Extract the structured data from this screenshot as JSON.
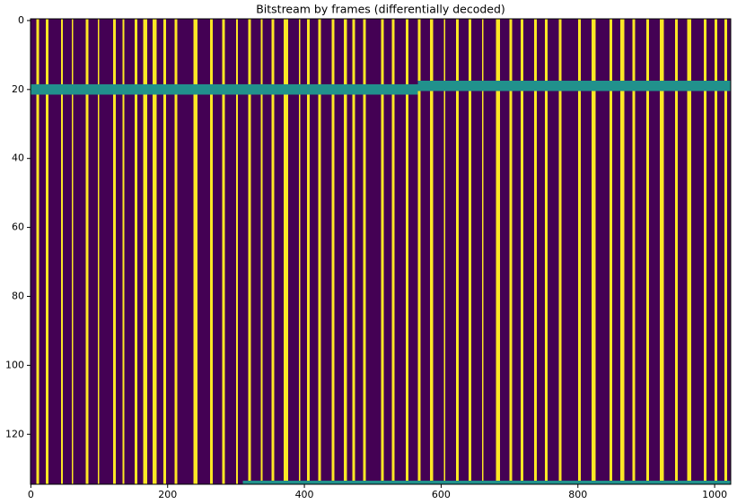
{
  "chart_data": {
    "type": "heatmap",
    "title": "Bitstream by frames (differentially decoded)",
    "xlim": [
      -0.5,
      1023.5
    ],
    "ylim": [
      134.5,
      -0.5
    ],
    "xticks": [
      0,
      200,
      400,
      600,
      800,
      1000
    ],
    "yticks": [
      0,
      20,
      40,
      60,
      80,
      100,
      120
    ],
    "colormap": [
      {
        "value": 0,
        "color": "#440154"
      },
      {
        "value": 0.5,
        "color": "#21918c"
      },
      {
        "value": 1,
        "color": "#fde725"
      }
    ],
    "background": 0,
    "stripes": {
      "value": 1,
      "x": [
        [
          8,
          12
        ],
        [
          22,
          26
        ],
        [
          44,
          47
        ],
        [
          60,
          62
        ],
        [
          80,
          84
        ],
        [
          98,
          100
        ],
        [
          120,
          124
        ],
        [
          134,
          137
        ],
        [
          152,
          156
        ],
        [
          164,
          170
        ],
        [
          178,
          184
        ],
        [
          194,
          198
        ],
        [
          210,
          214
        ],
        [
          238,
          244
        ],
        [
          262,
          266
        ],
        [
          280,
          284
        ],
        [
          300,
          303
        ],
        [
          318,
          322
        ],
        [
          336,
          339
        ],
        [
          352,
          356
        ],
        [
          370,
          376
        ],
        [
          392,
          394
        ],
        [
          404,
          408
        ],
        [
          420,
          424
        ],
        [
          440,
          444
        ],
        [
          458,
          462
        ],
        [
          470,
          474
        ],
        [
          486,
          490
        ],
        [
          512,
          516
        ],
        [
          528,
          532
        ],
        [
          548,
          552
        ],
        [
          566,
          570
        ],
        [
          584,
          588
        ],
        [
          604,
          606
        ],
        [
          622,
          626
        ],
        [
          640,
          644
        ],
        [
          660,
          662
        ],
        [
          680,
          686
        ],
        [
          700,
          704
        ],
        [
          716,
          720
        ],
        [
          736,
          740
        ],
        [
          752,
          756
        ],
        [
          772,
          776
        ],
        [
          800,
          804
        ],
        [
          820,
          826
        ],
        [
          846,
          850
        ],
        [
          862,
          868
        ],
        [
          880,
          884
        ],
        [
          900,
          904
        ],
        [
          920,
          926
        ],
        [
          942,
          946
        ],
        [
          960,
          966
        ],
        [
          984,
          988
        ],
        [
          1000,
          1004
        ],
        [
          1014,
          1018
        ]
      ]
    },
    "bands": [
      {
        "x": [
          -0.5,
          566
        ],
        "y": [
          18.5,
          21.5
        ],
        "value": 0.5
      },
      {
        "x": [
          566,
          1023.5
        ],
        "y": [
          17.5,
          20.5
        ],
        "value": 0.5
      },
      {
        "x": [
          310,
          1023.5
        ],
        "y": [
          133.5,
          134.5
        ],
        "value": 0.5
      }
    ]
  }
}
